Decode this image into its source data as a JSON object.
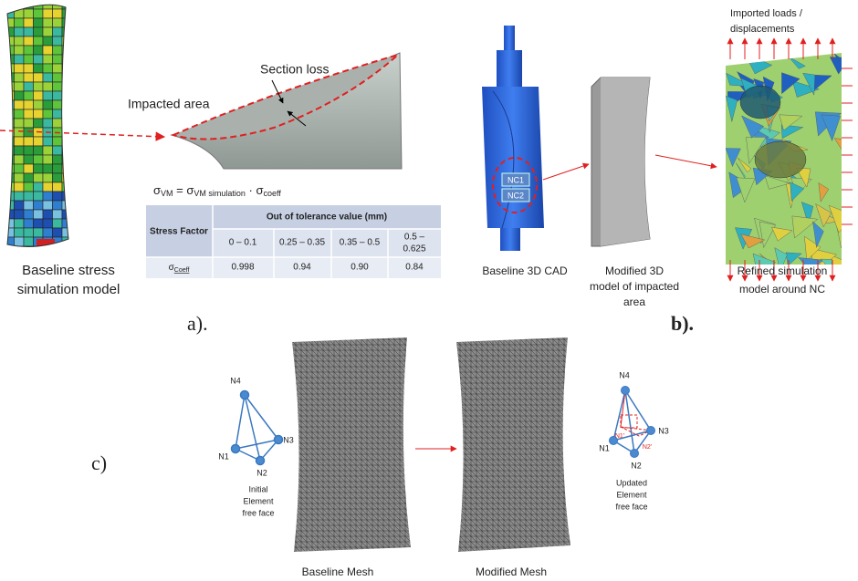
{
  "panel_a": {
    "label": "a).",
    "model_caption": [
      "Baseline stress",
      "simulation model"
    ],
    "impacted_area": "Impacted area",
    "section_loss": "Section loss",
    "formula": [
      "σ",
      "VM",
      " = σ",
      "VM simulation",
      " · σ",
      "coeff"
    ],
    "table": {
      "header": [
        "Stress Factor",
        "Out of tolerance value (mm)"
      ],
      "ranges": [
        "0 – 0.1",
        "0.25 – 0.35",
        "0.35 – 0.5",
        [
          "0.5 –",
          "0.625"
        ]
      ],
      "row": {
        "symbol": "σ",
        "symbol_sub": "Coeff",
        "values": [
          "0.998",
          "0.94",
          "0.90",
          "0.84"
        ]
      }
    }
  },
  "panel_b": {
    "label": "b).",
    "loads": [
      "Imported loads /",
      "displacements"
    ],
    "nc1": "NC1",
    "nc2": "NC2",
    "cad_caption": "Baseline 3D CAD",
    "modified_caption": [
      "Modified 3D",
      "model of impacted",
      "area"
    ],
    "refined_caption": [
      "Refined simulation",
      "model around NC"
    ]
  },
  "panel_c": {
    "label": "c)",
    "initial": {
      "nodes": [
        "N4",
        "N1",
        "N2",
        "N3"
      ],
      "caption": [
        "Initial",
        "Element",
        "free face"
      ]
    },
    "updated": {
      "nodes": [
        "N4",
        "N1",
        "N2",
        "N3"
      ],
      "moved_nodes": [
        "N1'",
        "N2'"
      ],
      "caption": [
        "Updated",
        "Element",
        "free face"
      ]
    },
    "baseline_mesh": "Baseline Mesh",
    "modified_mesh": "Modified Mesh"
  }
}
